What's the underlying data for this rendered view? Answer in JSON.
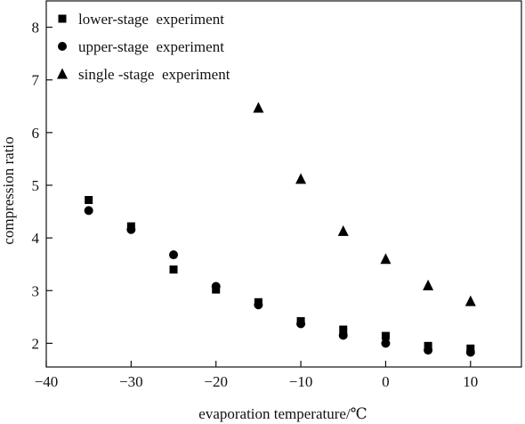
{
  "chart_data": {
    "type": "scatter",
    "title": "",
    "xlabel": "evaporation temperature/℃",
    "ylabel": "compression ratio",
    "xlim": [
      -40,
      16
    ],
    "ylim": [
      1.55,
      8.5
    ],
    "xticks": [
      -40,
      -30,
      -20,
      -10,
      0,
      10
    ],
    "xtick_labels": [
      "−40",
      "−30",
      "−20",
      "−10",
      "0",
      "10"
    ],
    "yticks": [
      2,
      3,
      4,
      5,
      6,
      7,
      8
    ],
    "ytick_labels": [
      "2",
      "3",
      "4",
      "5",
      "6",
      "7",
      "8"
    ],
    "grid": false,
    "legend_position": "top-left",
    "series": [
      {
        "name": "lower-stage  experiment",
        "marker": "square",
        "color": "#000000",
        "x": [
          -35,
          -30,
          -25,
          -20,
          -15,
          -10,
          -5,
          0,
          5,
          10
        ],
        "y": [
          4.72,
          4.22,
          3.4,
          3.02,
          2.78,
          2.42,
          2.26,
          2.14,
          1.95,
          1.9
        ]
      },
      {
        "name": "upper-stage  experiment",
        "marker": "circle",
        "color": "#000000",
        "x": [
          -35,
          -30,
          -25,
          -20,
          -15,
          -10,
          -5,
          0,
          5,
          10
        ],
        "y": [
          4.52,
          4.16,
          3.68,
          3.08,
          2.73,
          2.37,
          2.15,
          2.0,
          1.87,
          1.83
        ]
      },
      {
        "name": "single -stage  experiment",
        "marker": "triangle",
        "color": "#000000",
        "x": [
          -15,
          -10,
          -5,
          0,
          5,
          10
        ],
        "y": [
          6.47,
          5.12,
          4.13,
          3.6,
          3.1,
          2.8
        ]
      }
    ]
  }
}
